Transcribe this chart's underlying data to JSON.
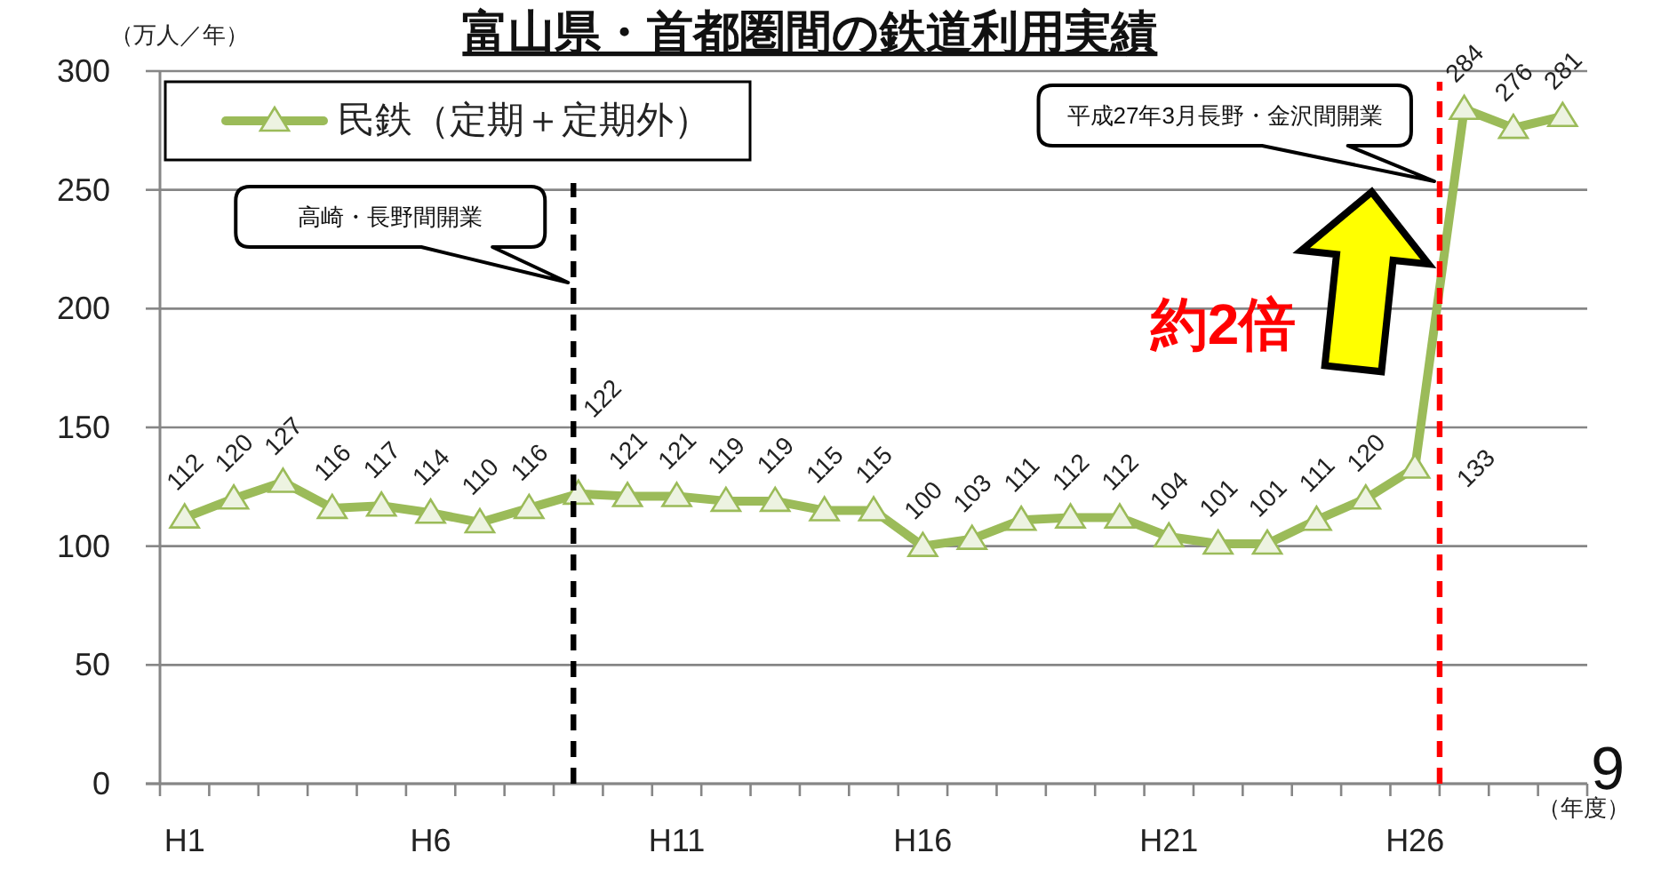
{
  "chart_data": {
    "type": "line",
    "title": "富山県・首都圏間の鉄道利用実績",
    "ylabel": "（万人／年）",
    "xlabel": "（年度）",
    "categories": [
      "H1",
      null,
      null,
      null,
      null,
      "H6",
      null,
      null,
      null,
      null,
      "H11",
      null,
      null,
      null,
      null,
      "H16",
      null,
      null,
      null,
      null,
      "H21",
      null,
      null,
      null,
      null,
      "H26",
      null,
      null,
      null
    ],
    "series": [
      {
        "name": "民鉄（定期＋定期外）",
        "color": "#9bbb59",
        "values": [
          112,
          120,
          127,
          116,
          117,
          114,
          110,
          116,
          122,
          121,
          121,
          119,
          119,
          115,
          115,
          100,
          103,
          111,
          112,
          112,
          104,
          101,
          101,
          111,
          120,
          133,
          284,
          276,
          281
        ]
      }
    ],
    "ylim": [
      0,
      300
    ],
    "yticks": [
      0,
      50,
      100,
      150,
      200,
      250,
      300
    ],
    "grid": "y",
    "legend": "top left",
    "marker": "triangle",
    "data_labels": true,
    "annotations": [
      "高崎・長野間開業",
      "平成27年3月長野・金沢間開業",
      "約2倍",
      "9"
    ]
  }
}
